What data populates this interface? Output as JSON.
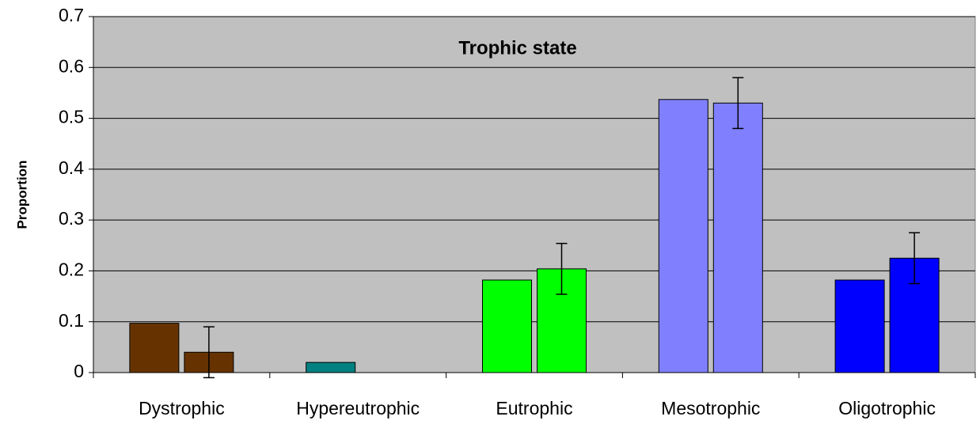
{
  "chart_data": {
    "type": "bar",
    "title": "Trophic state",
    "y_label": "Proportion",
    "categories": [
      "Dystrophic",
      "Hypereutrophic",
      "Eutrophic",
      "Mesotrophic",
      "Oligotrophic"
    ],
    "colors": [
      "#663300",
      "#008080",
      "#00ff00",
      "#8080ff",
      "#0000ff"
    ],
    "series": [
      {
        "values": [
          0.097,
          0.02,
          0.182,
          0.537,
          0.182
        ]
      },
      {
        "values": [
          0.04,
          null,
          0.204,
          0.53,
          0.225
        ],
        "errors": [
          0.05,
          null,
          0.05,
          0.05,
          0.05
        ]
      }
    ],
    "ylim": [
      0,
      0.7
    ],
    "yticks": [
      0,
      0.1,
      0.2,
      0.3,
      0.4,
      0.5,
      0.6,
      0.7
    ],
    "grid": true,
    "background": "#c0c0c0"
  }
}
